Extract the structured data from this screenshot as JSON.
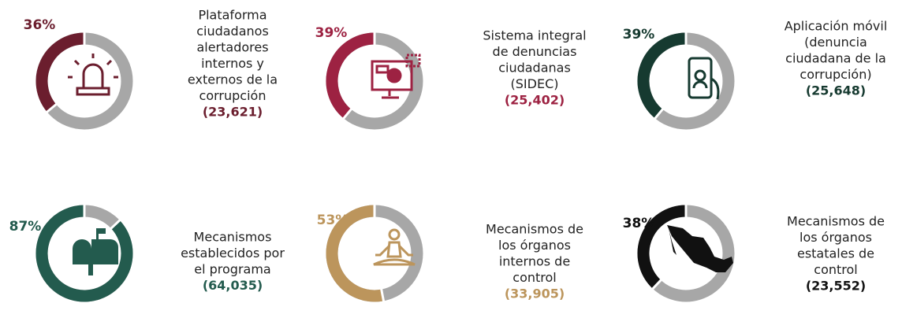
{
  "chart_data": [
    {
      "type": "donut",
      "values": [
        36
      ],
      "value_labels": [
        "36%"
      ],
      "color": "#6b1e2e",
      "label_lines": [
        "Plataforma",
        "ciudadanos",
        "alertadores",
        "internos y",
        "externos de la",
        "corrupción"
      ],
      "annotation": "(23,621)"
    },
    {
      "type": "donut",
      "values": [
        39
      ],
      "value_labels": [
        "39%"
      ],
      "color": "#9d2242",
      "label_lines": [
        "Sistema integral",
        "de denuncias",
        "ciudadanas",
        "(SIDEC)"
      ],
      "annotation": "(25,402)"
    },
    {
      "type": "donut",
      "values": [
        39
      ],
      "value_labels": [
        "39%"
      ],
      "color": "#163a30",
      "label_lines": [
        "Aplicación móvil",
        "(denuncia",
        "ciudadana de la",
        "corrupción)"
      ],
      "annotation": "(25,648)"
    },
    {
      "type": "donut",
      "values": [
        87
      ],
      "value_labels": [
        "87%"
      ],
      "color": "#235b4e",
      "label_lines": [
        "Mecanismos",
        "establecidos por",
        "el programa"
      ],
      "annotation": "(64,035)"
    },
    {
      "type": "donut",
      "values": [
        53
      ],
      "value_labels": [
        "53%"
      ],
      "color": "#bc955c",
      "label_lines": [
        "Mecanismos de",
        "los órganos",
        "internos de",
        "control"
      ],
      "annotation": "(33,905)"
    },
    {
      "type": "donut",
      "values": [
        38
      ],
      "value_labels": [
        "38%"
      ],
      "color": "#111111",
      "label_lines": [
        "Mecanismos de",
        "los órganos",
        "estatales de",
        "control"
      ],
      "annotation": "(23,552)"
    }
  ]
}
